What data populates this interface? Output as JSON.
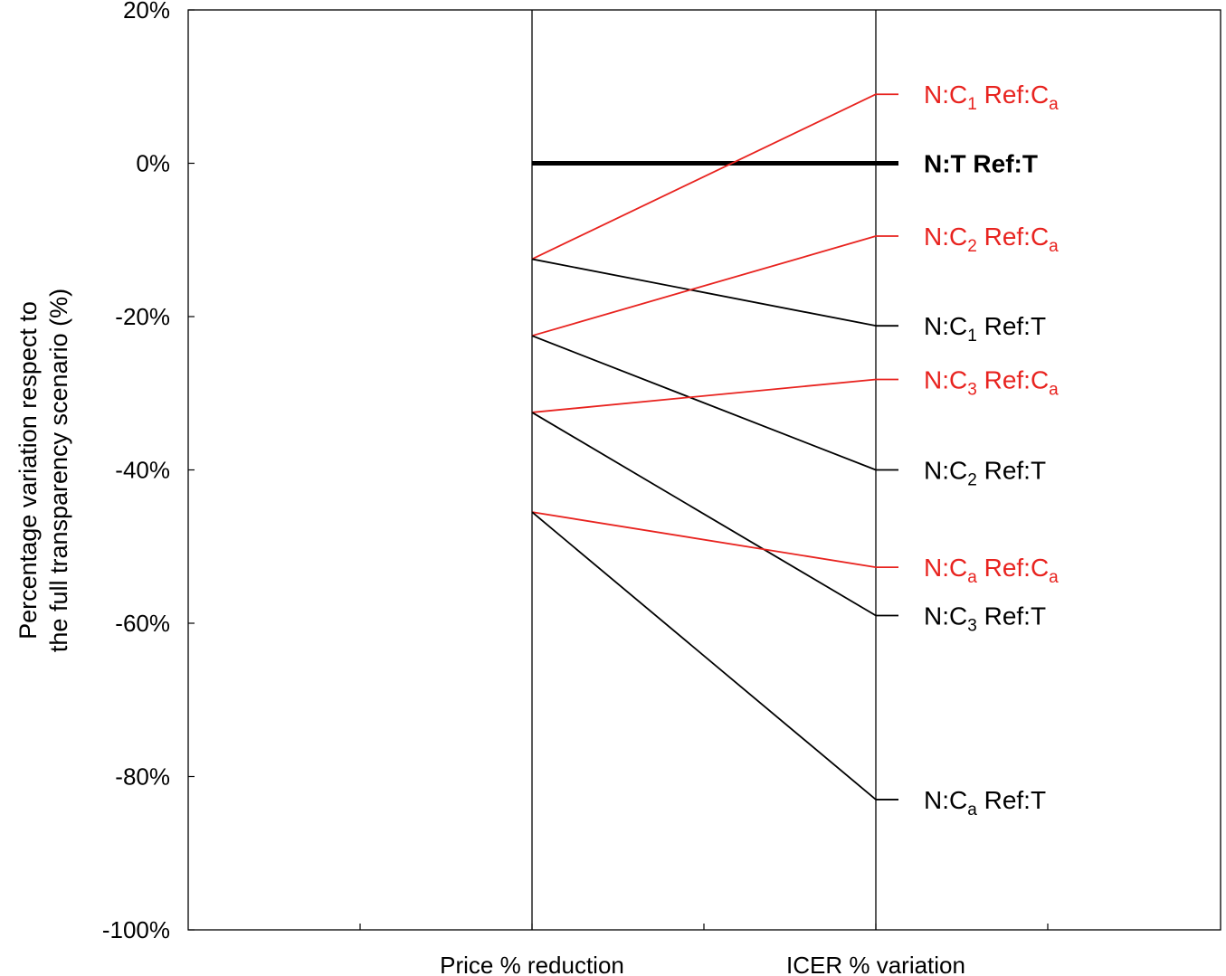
{
  "chart_data": {
    "type": "line",
    "categories": [
      "Price % reduction",
      "ICER % variation"
    ],
    "ylim": [
      -100,
      20
    ],
    "yticks": [
      20,
      0,
      -20,
      -40,
      -60,
      -80,
      -100
    ],
    "ytick_labels": [
      "20%",
      "0%",
      "-20%",
      "-40%",
      "-60%",
      "-80%",
      "-100%"
    ],
    "ylabel_lines": [
      "Percentage variation respect to",
      "the full transparency scenario (%)"
    ],
    "grid": false,
    "colors": {
      "red": "#e8231f",
      "black": "#000000"
    },
    "series": [
      {
        "name": "N:T Ref:T",
        "name_parts": [
          [
            "N:T Ref:T",
            ""
          ]
        ],
        "values": [
          0,
          0
        ],
        "color": "#000000",
        "bold": true
      },
      {
        "name": "N:C1 Ref:Ca",
        "name_parts": [
          [
            "N:C",
            ""
          ],
          [
            "1",
            "sub"
          ],
          [
            " Ref:C",
            ""
          ],
          [
            "a",
            "sub"
          ]
        ],
        "values": [
          -12.5,
          9
        ],
        "color": "#e8231f",
        "bold": false
      },
      {
        "name": "N:C1 Ref:T",
        "name_parts": [
          [
            "N:C",
            ""
          ],
          [
            "1",
            "sub"
          ],
          [
            " Ref:T",
            ""
          ]
        ],
        "values": [
          -12.5,
          -21.2
        ],
        "color": "#000000",
        "bold": false
      },
      {
        "name": "N:C2 Ref:Ca",
        "name_parts": [
          [
            "N:C",
            ""
          ],
          [
            "2",
            "sub"
          ],
          [
            " Ref:C",
            ""
          ],
          [
            "a",
            "sub"
          ]
        ],
        "values": [
          -22.5,
          -9.5
        ],
        "color": "#e8231f",
        "bold": false
      },
      {
        "name": "N:C2 Ref:T",
        "name_parts": [
          [
            "N:C",
            ""
          ],
          [
            "2",
            "sub"
          ],
          [
            " Ref:T",
            ""
          ]
        ],
        "values": [
          -22.5,
          -40
        ],
        "color": "#000000",
        "bold": false
      },
      {
        "name": "N:C3 Ref:Ca",
        "name_parts": [
          [
            "N:C",
            ""
          ],
          [
            "3",
            "sub"
          ],
          [
            " Ref:C",
            ""
          ],
          [
            "a",
            "sub"
          ]
        ],
        "values": [
          -32.5,
          -28.2
        ],
        "color": "#e8231f",
        "bold": false
      },
      {
        "name": "N:C3 Ref:T",
        "name_parts": [
          [
            "N:C",
            ""
          ],
          [
            "3",
            "sub"
          ],
          [
            " Ref:T",
            ""
          ]
        ],
        "values": [
          -32.5,
          -59
        ],
        "color": "#000000",
        "bold": false
      },
      {
        "name": "N:Ca Ref:Ca",
        "name_parts": [
          [
            "N:C",
            ""
          ],
          [
            "a",
            "sub"
          ],
          [
            " Ref:C",
            ""
          ],
          [
            "a",
            "sub"
          ]
        ],
        "values": [
          -45.5,
          -52.7
        ],
        "color": "#e8231f",
        "bold": false
      },
      {
        "name": "N:Ca Ref:T",
        "name_parts": [
          [
            "N:C",
            ""
          ],
          [
            "a",
            "sub"
          ],
          [
            " Ref:T",
            ""
          ]
        ],
        "values": [
          -45.5,
          -83
        ],
        "color": "#000000",
        "bold": false
      }
    ]
  }
}
